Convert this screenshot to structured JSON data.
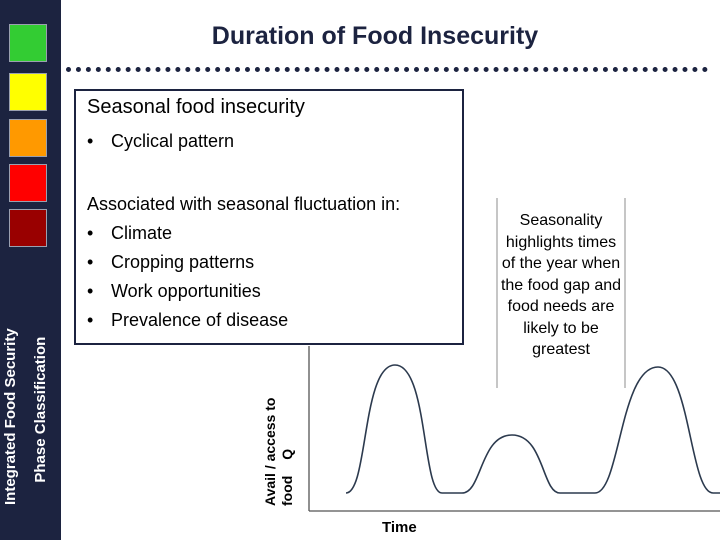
{
  "title": "Duration of Food Insecurity",
  "sidebar": {
    "swatches": [
      {
        "name": "green",
        "color": "#33cc33"
      },
      {
        "name": "yellow",
        "color": "#ffff00"
      },
      {
        "name": "orange",
        "color": "#ff9900"
      },
      {
        "name": "red",
        "color": "#ff0000"
      },
      {
        "name": "dark-red",
        "color": "#990000"
      }
    ],
    "caption_line1": "Integrated Food Security",
    "caption_line2": "Phase Classification"
  },
  "box": {
    "heading": "Seasonal food insecurity",
    "bullet1": "Cyclical pattern",
    "subheading": "Associated with seasonal fluctuation in:",
    "list": [
      "Climate",
      "Cropping patterns",
      "Work opportunities",
      "Prevalence of disease"
    ],
    "bullet_symbol": "•"
  },
  "callout": "Seasonality highlights times of the year when the food gap and food needs are likely to be greatest",
  "graph": {
    "y_label_line1": "Avail / access to",
    "y_label_line2": "food Q",
    "x_label": "Time"
  }
}
